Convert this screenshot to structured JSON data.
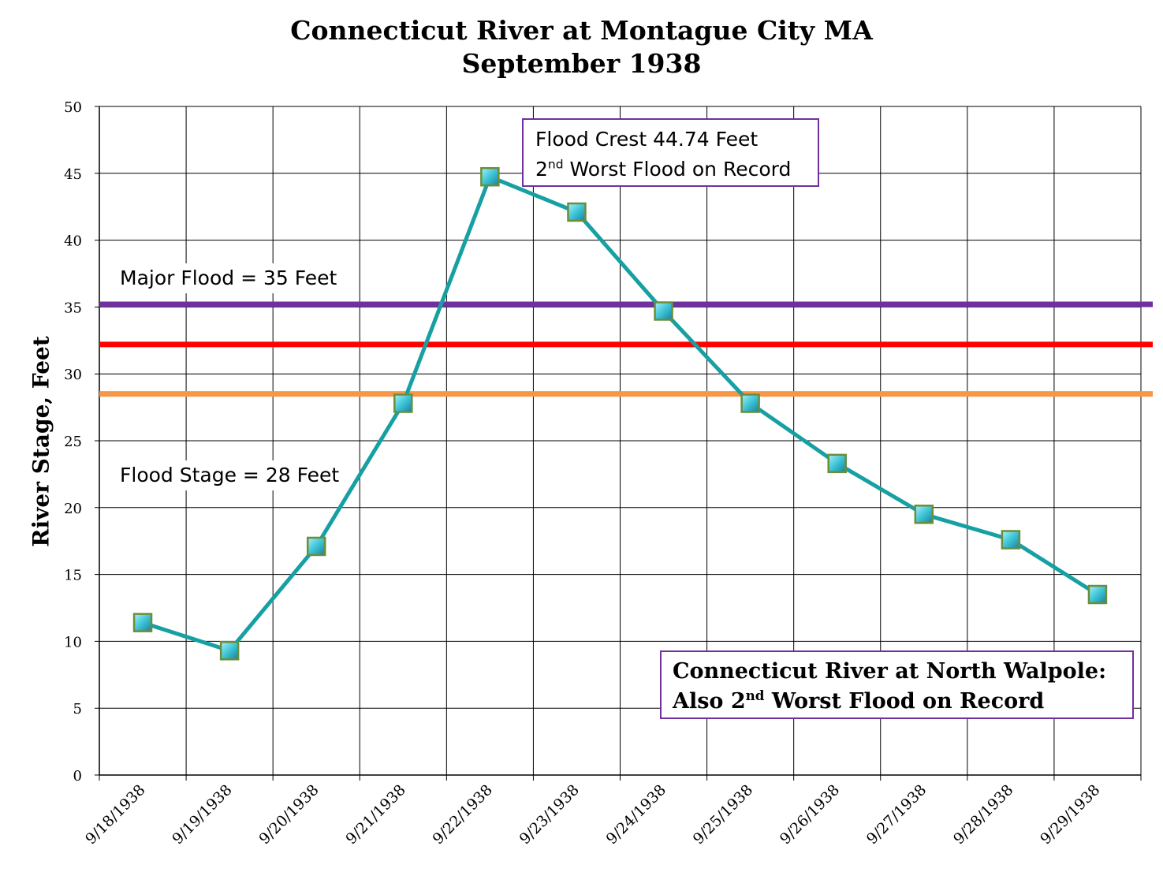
{
  "chart_data": {
    "type": "line",
    "title": "Connecticut River at Montague City MA",
    "subtitle": "September 1938",
    "ylabel": "River Stage, Feet",
    "xlabel": "",
    "ylim": [
      0,
      50
    ],
    "yticks": [
      0,
      5,
      10,
      15,
      20,
      25,
      30,
      35,
      40,
      45,
      50
    ],
    "grid": true,
    "categories": [
      "9/18/1938",
      "9/19/1938",
      "9/20/1938",
      "9/21/1938",
      "9/22/1938",
      "9/23/1938",
      "9/24/1938",
      "9/25/1938",
      "9/26/1938",
      "9/27/1938",
      "9/28/1938",
      "9/29/1938"
    ],
    "series": [
      {
        "values": [
          11.4,
          9.3,
          17.1,
          27.8,
          44.74,
          42.1,
          34.7,
          27.8,
          23.3,
          19.5,
          17.6,
          13.5
        ],
        "color": "#17a0a3",
        "marker_color": "#40c8d8",
        "marker_border": "#6a8e3a"
      }
    ],
    "reference_lines": [
      {
        "value": 35.2,
        "color": "#7030a0"
      },
      {
        "value": 32.2,
        "color": "#ff0000"
      },
      {
        "value": 28.5,
        "color": "#f79646"
      }
    ],
    "annotations": {
      "major_flood": "Major Flood = 35 Feet",
      "flood_stage": "Flood Stage = 28 Feet",
      "crest_line1": "Flood Crest 44.74 Feet",
      "crest_line2_num": "2",
      "crest_line2_sup": "nd",
      "crest_line2_rest": " Worst Flood on Record",
      "walpole_line1": "Connecticut River at North Walpole:",
      "walpole_line2_pre": "Also 2",
      "walpole_line2_sup": "nd",
      "walpole_line2_rest": " Worst Flood on Record"
    }
  }
}
